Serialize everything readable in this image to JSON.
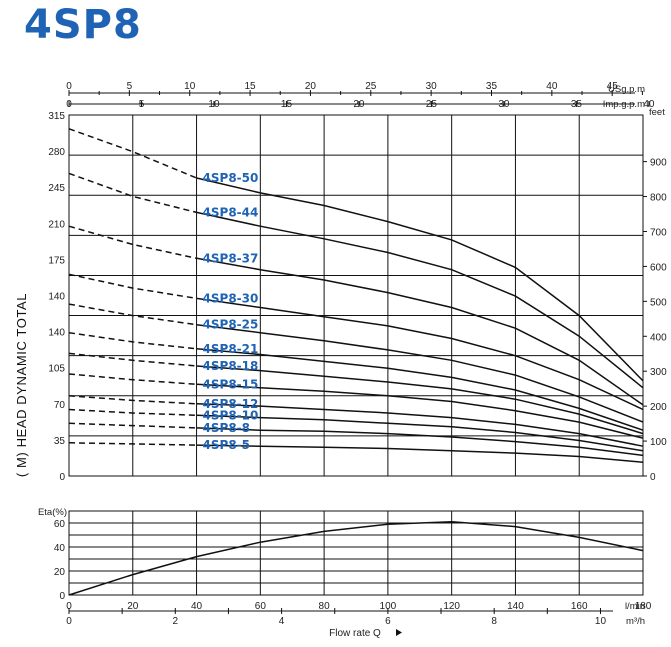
{
  "title": "4SP8",
  "chart_data": [
    {
      "type": "line",
      "title": "",
      "ylabel": "( M) HEAD DYNAMIC TOTAL",
      "ylim": [
        0,
        315
      ],
      "y_ticks_left": [
        "315",
        "280",
        "245",
        "210",
        "175",
        "140",
        "140",
        "105",
        "70",
        "35",
        "0"
      ],
      "y_ticks_right": [
        "900",
        "800",
        "700",
        "600",
        "500",
        "400",
        "300",
        "200",
        "100",
        "0"
      ],
      "y_right_unit": "feet",
      "top_axes": [
        {
          "unit": "USg.p.m",
          "ticks": [
            "0",
            "5",
            "10",
            "15",
            "20",
            "25",
            "30",
            "35",
            "40",
            "45"
          ]
        },
        {
          "unit": "Imp.g.p.m",
          "ticks": [
            "0",
            "5",
            "10",
            "15",
            "20",
            "25",
            "30",
            "35",
            "40"
          ]
        }
      ],
      "x_unit": "l/min",
      "xlim": [
        0,
        180
      ],
      "series": [
        {
          "name": "4SP8-50",
          "x": [
            0,
            20,
            40,
            60,
            80,
            100,
            120,
            140,
            160,
            180
          ],
          "y": [
            303,
            283,
            260,
            247,
            236,
            222,
            206,
            182,
            140,
            83
          ]
        },
        {
          "name": "4SP8-44",
          "x": [
            0,
            20,
            40,
            60,
            80,
            100,
            120,
            140,
            160,
            180
          ],
          "y": [
            264,
            244,
            230,
            218,
            207,
            195,
            180,
            157,
            122,
            77
          ]
        },
        {
          "name": "4SP8-37",
          "x": [
            0,
            20,
            40,
            60,
            80,
            100,
            120,
            140,
            160,
            180
          ],
          "y": [
            218,
            202,
            190,
            180,
            171,
            160,
            147,
            129,
            101,
            62
          ]
        },
        {
          "name": "4SP8-30",
          "x": [
            0,
            20,
            40,
            60,
            80,
            100,
            120,
            140,
            160,
            180
          ],
          "y": [
            176,
            164,
            155,
            147,
            139,
            131,
            120,
            105,
            84,
            58
          ]
        },
        {
          "name": "4SP8-25",
          "x": [
            0,
            20,
            40,
            60,
            80,
            100,
            120,
            140,
            160,
            180
          ],
          "y": [
            150,
            140,
            132,
            125,
            118,
            110,
            101,
            88,
            69,
            47
          ]
        },
        {
          "name": "4SP8-21",
          "x": [
            0,
            20,
            40,
            60,
            80,
            100,
            120,
            140,
            160,
            180
          ],
          "y": [
            125,
            117,
            111,
            106,
            100,
            94,
            86,
            75,
            59,
            40
          ]
        },
        {
          "name": "4SP8-18",
          "x": [
            0,
            20,
            40,
            60,
            80,
            100,
            120,
            140,
            160,
            180
          ],
          "y": [
            107,
            101,
            96,
            92,
            87,
            82,
            76,
            67,
            54,
            37
          ]
        },
        {
          "name": "4SP8-15",
          "x": [
            0,
            20,
            40,
            60,
            80,
            100,
            120,
            140,
            160,
            180
          ],
          "y": [
            89,
            84,
            80,
            77,
            74,
            70,
            65,
            57,
            47,
            33
          ]
        },
        {
          "name": "4SP8-12",
          "x": [
            0,
            20,
            40,
            60,
            80,
            100,
            120,
            140,
            160,
            180
          ],
          "y": [
            70,
            66,
            63,
            61,
            58,
            55,
            51,
            45,
            37,
            26
          ]
        },
        {
          "name": "4SP8-10",
          "x": [
            0,
            20,
            40,
            60,
            80,
            100,
            120,
            140,
            160,
            180
          ],
          "y": [
            58,
            55,
            53,
            51,
            49,
            46,
            43,
            38,
            31,
            22
          ]
        },
        {
          "name": "4SP8-8",
          "x": [
            0,
            20,
            40,
            60,
            80,
            100,
            120,
            140,
            160,
            180
          ],
          "y": [
            46,
            44,
            42,
            40,
            39,
            37,
            34,
            30,
            25,
            18
          ]
        },
        {
          "name": "4SP8-5",
          "x": [
            0,
            20,
            40,
            60,
            80,
            100,
            120,
            140,
            160,
            180
          ],
          "y": [
            29,
            28,
            27,
            26,
            25,
            24,
            22,
            20,
            17,
            12
          ]
        }
      ],
      "dashed_below_x": 40
    },
    {
      "type": "line",
      "ylabel": "Eta(%)",
      "ylim": [
        0,
        60
      ],
      "y_ticks": [
        "60",
        "40",
        "20",
        "0"
      ],
      "x_ticks": [
        "0",
        "20",
        "40",
        "60",
        "80",
        "100",
        "120",
        "140",
        "160",
        "180"
      ],
      "x_unit": "l/min",
      "bottom_axis": {
        "unit": "m³/h",
        "ticks": [
          "0",
          "2",
          "4",
          "6",
          "8",
          "10"
        ]
      },
      "xlabel": "Flow rate Q",
      "xlim": [
        0,
        180
      ],
      "series": [
        {
          "x": [
            0,
            20,
            40,
            60,
            80,
            100,
            120,
            140,
            160,
            180
          ],
          "y": [
            0,
            17,
            32,
            44,
            53,
            59,
            61,
            57,
            48,
            37
          ]
        }
      ]
    }
  ]
}
